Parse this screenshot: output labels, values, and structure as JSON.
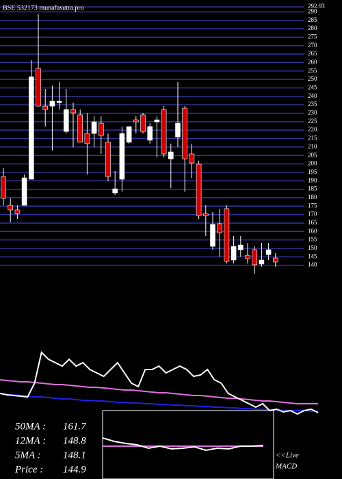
{
  "header": "BSE 532173 munafasutra.pro",
  "chart_data": [
    {
      "type": "candlestick",
      "up_color": "#ffffff",
      "down_color": "#cc0000",
      "grid": true,
      "grid_color": "#34349c",
      "ylim": [
        135,
        295
      ],
      "yticks": [
        140,
        145,
        150,
        155,
        160,
        165,
        170,
        175,
        180,
        185,
        190,
        195,
        200,
        205,
        210,
        215,
        220,
        225,
        230,
        235,
        240,
        245,
        250,
        255,
        260,
        265,
        270,
        275,
        280,
        285,
        290,
        292.93
      ],
      "open": [
        192.5,
        175.5,
        172.7,
        175.5,
        190.9,
        256.5,
        234.2,
        234.2,
        236.3,
        219.2,
        232.2,
        229.0,
        218.0,
        218.0,
        224.1,
        212.8,
        182.8,
        190.9,
        212.8,
        226.1,
        229.0,
        214.0,
        224.9,
        232.2,
        203.0,
        216.0,
        233.0,
        205.9,
        199.8,
        170.6,
        151.2,
        164.6,
        173.5,
        143.1,
        149.2,
        145.9,
        149.2,
        140.7,
        146.3,
        144.3
      ],
      "high": [
        197.8,
        179.6,
        175.5,
        193.7,
        261.4,
        288.9,
        244.4,
        246.4,
        248.4,
        244.4,
        236.3,
        232.2,
        230.2,
        228.2,
        228.2,
        218.0,
        195.8,
        222.1,
        222.1,
        228.2,
        230.2,
        224.1,
        228.2,
        234.2,
        212.0,
        248.4,
        234.2,
        212.0,
        201.8,
        175.5,
        171.5,
        173.5,
        175.5,
        157.3,
        157.3,
        153.2,
        151.2,
        153.2,
        153.2,
        147.2
      ],
      "low": [
        175.5,
        165.4,
        167.4,
        175.5,
        190.9,
        234.2,
        222.1,
        207.9,
        232.2,
        218.0,
        209.9,
        214.0,
        193.7,
        209.9,
        205.9,
        189.7,
        181.6,
        183.6,
        212.0,
        218.0,
        218.0,
        212.0,
        203.9,
        203.9,
        185.6,
        209.9,
        183.6,
        191.7,
        167.4,
        157.3,
        149.2,
        145.1,
        141.1,
        141.1,
        145.1,
        141.1,
        135.0,
        139.1,
        143.1,
        139.1
      ],
      "close": [
        179.6,
        172.7,
        170.6,
        191.7,
        251.6,
        234.2,
        232.2,
        237.1,
        237.1,
        232.2,
        230.2,
        212.8,
        212.0,
        224.9,
        216.8,
        192.5,
        185.2,
        218.0,
        222.1,
        224.9,
        219.2,
        222.1,
        226.1,
        205.9,
        207.1,
        224.1,
        203.0,
        200.6,
        169.4,
        169.4,
        164.2,
        159.3,
        142.3,
        151.2,
        152.0,
        143.9,
        140.3,
        143.1,
        149.2,
        141.9
      ]
    },
    {
      "type": "line",
      "ylim": [
        0,
        120
      ],
      "series": [
        {
          "color": "#e070e0",
          "values": [
            65,
            64,
            63,
            62,
            62,
            61,
            60,
            59,
            58,
            58,
            57,
            56,
            55,
            54,
            54,
            53,
            52,
            51,
            50,
            50,
            49,
            48,
            47,
            46,
            46,
            45,
            44,
            43,
            42,
            42,
            41,
            40,
            39,
            38,
            38,
            37,
            36,
            35,
            34,
            34,
            33,
            32,
            31,
            30,
            30,
            30,
            30
          ]
        },
        {
          "color": "#2020e0",
          "values": [
            45,
            44,
            43,
            42,
            41,
            40,
            40,
            39,
            38,
            37,
            37,
            36,
            35,
            35,
            34,
            34,
            33,
            32,
            32,
            31,
            31,
            30,
            30,
            29,
            29,
            28,
            28,
            27,
            27,
            26,
            26,
            25,
            25,
            24,
            24,
            23,
            23,
            22,
            22,
            21,
            21,
            20,
            20,
            20,
            20,
            19,
            19
          ]
        },
        {
          "color": "#ffffff",
          "values": [
            45,
            43,
            42,
            41,
            40,
            60,
            105,
            95,
            90,
            85,
            95,
            85,
            90,
            80,
            75,
            70,
            80,
            90,
            75,
            60,
            55,
            80,
            80,
            85,
            75,
            80,
            85,
            80,
            70,
            72,
            80,
            65,
            60,
            45,
            40,
            35,
            30,
            25,
            30,
            20,
            22,
            18,
            20,
            15,
            20,
            22,
            17
          ]
        }
      ]
    },
    {
      "type": "line",
      "ylim": [
        0,
        100
      ],
      "label": "MACD",
      "series": [
        {
          "color": "#e070e0",
          "values": [
            48,
            48,
            48,
            48,
            48,
            48,
            48,
            48,
            48,
            48,
            48,
            48,
            48,
            48,
            48
          ]
        },
        {
          "color": "#ffffff",
          "values": [
            60,
            55,
            52,
            50,
            45,
            48,
            44,
            45,
            47,
            42,
            45,
            44,
            48,
            48,
            49
          ]
        }
      ]
    }
  ],
  "stats": [
    {
      "label": "50MA :",
      "value": 161.7
    },
    {
      "label": "12MA :",
      "value": 148.8
    },
    {
      "label": "5MA :",
      "value": 148.1
    },
    {
      "label": "Price   :",
      "value": 144.9
    }
  ],
  "live": "<<Live"
}
